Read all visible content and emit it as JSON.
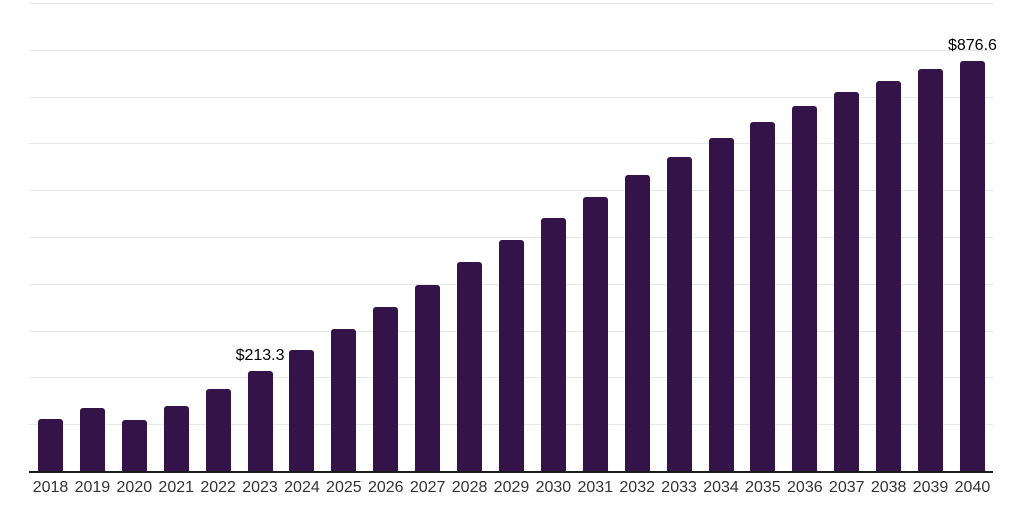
{
  "chart_data": {
    "type": "bar",
    "title": "",
    "xlabel": "",
    "ylabel": "",
    "categories": [
      "2018",
      "2019",
      "2020",
      "2021",
      "2022",
      "2023",
      "2024",
      "2025",
      "2026",
      "2027",
      "2028",
      "2029",
      "2030",
      "2031",
      "2032",
      "2033",
      "2034",
      "2035",
      "2036",
      "2037",
      "2038",
      "2039",
      "2040"
    ],
    "values": [
      111,
      135,
      109,
      139,
      175,
      213.3,
      259,
      303,
      350,
      397,
      447,
      494,
      541,
      586,
      633,
      671,
      712,
      746,
      780,
      810,
      833,
      859,
      876.6
    ],
    "value_labels": {
      "2023": "$213.3",
      "2040": "$876.6"
    },
    "ylim": [
      0,
      1000
    ],
    "gridline_step": 100,
    "grid": true,
    "legend": false,
    "y_tick_labels_shown": false
  },
  "colors": {
    "bar": "#341348",
    "gridline": "#e8e8e8",
    "axis_line": "#1c1c1c",
    "tick_label": "#333333",
    "value_label": "#000000",
    "background": "#ffffff"
  }
}
